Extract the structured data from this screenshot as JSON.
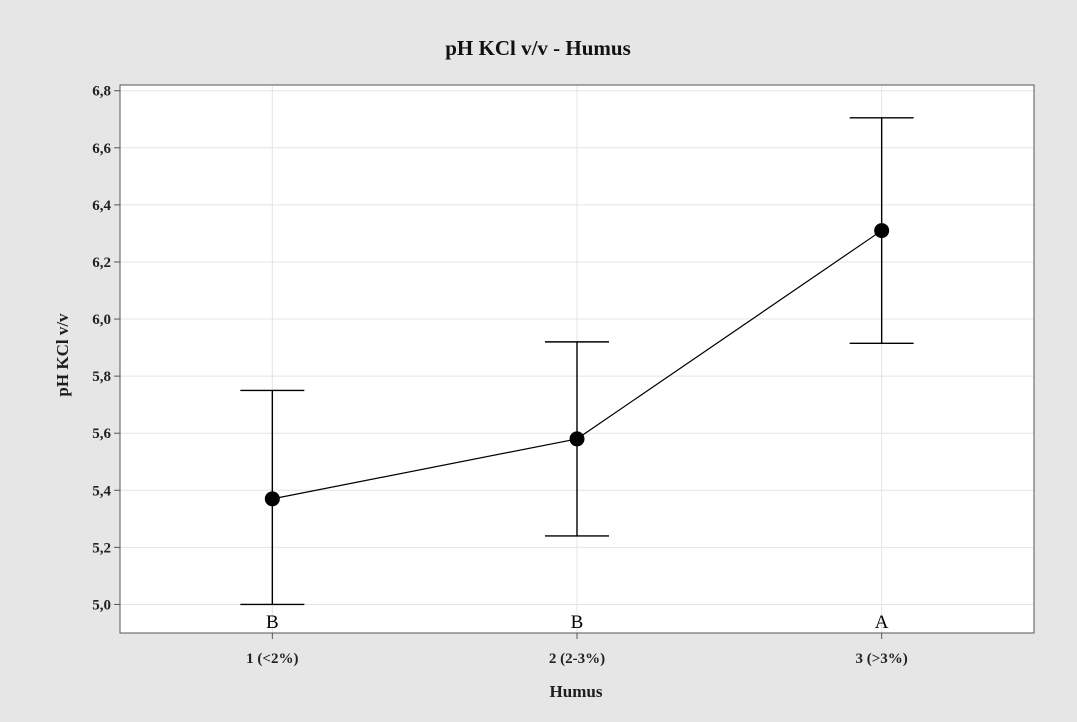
{
  "chart_data": {
    "type": "line",
    "title": "pH KCl v/v - Humus",
    "xlabel": "Humus",
    "ylabel": "pH KCl v/v",
    "categories": [
      "1 (<2%)",
      "2 (2-3%)",
      "3 (>3%)"
    ],
    "series": [
      {
        "values": [
          5.37,
          5.58,
          6.31
        ],
        "error_low": [
          5.0,
          5.24,
          5.915
        ],
        "error_high": [
          5.75,
          5.92,
          6.705
        ]
      }
    ],
    "group_letters": [
      "B",
      "B",
      "A"
    ],
    "ylim": [
      4.9,
      6.82
    ],
    "yticks": [
      5.0,
      5.2,
      5.4,
      5.6,
      5.8,
      6.0,
      6.2,
      6.4,
      6.6,
      6.8
    ],
    "ytick_labels": [
      "5,0",
      "5,2",
      "5,4",
      "5,6",
      "5,8",
      "6,0",
      "6,2",
      "6,4",
      "6,6",
      "6,8"
    ],
    "grid": true,
    "colors": {
      "background": "#e6e6e6",
      "plot_area": "#ffffff",
      "grid": "#e4e4e4",
      "marker": "#000000",
      "line": "#000000",
      "axis": "#555555"
    }
  }
}
